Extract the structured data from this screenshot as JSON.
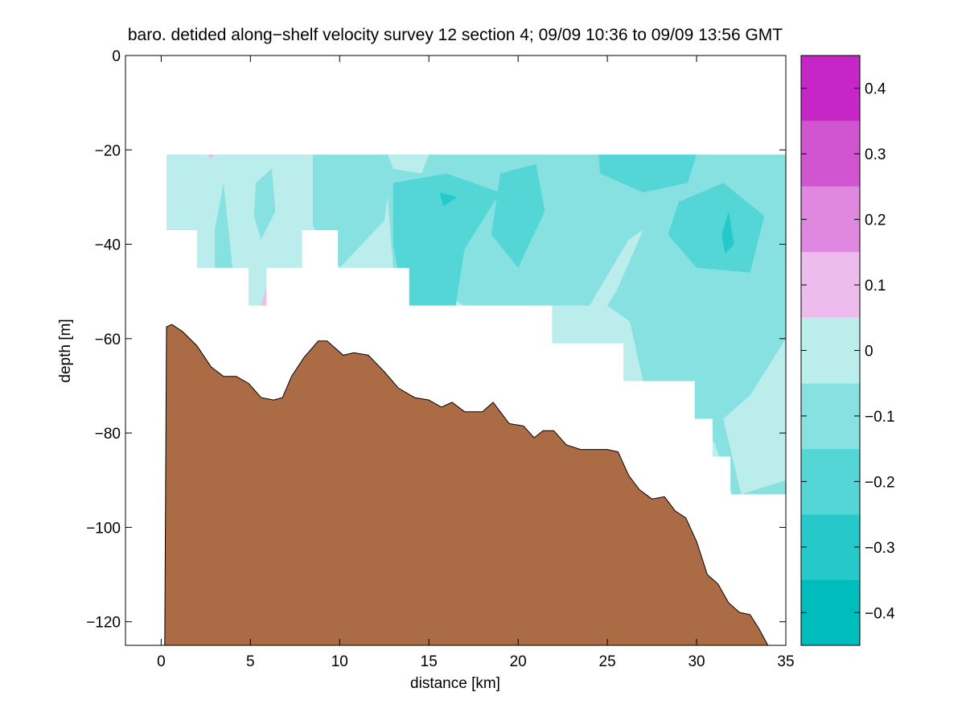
{
  "chart_data": {
    "type": "contour",
    "title": "baro. detided along−shelf velocity survey 12 section 4; 09/09 10:36 to 09/09 13:56 GMT",
    "xlabel": "distance [km]",
    "ylabel": "depth [m]",
    "xlim": [
      -2,
      35
    ],
    "ylim": [
      -125,
      0
    ],
    "x_ticks": [
      0,
      5,
      10,
      15,
      20,
      25,
      30,
      35
    ],
    "x_tick_labels": [
      "0",
      "5",
      "10",
      "15",
      "20",
      "25",
      "30",
      "35"
    ],
    "y_ticks": [
      0,
      -20,
      -40,
      -60,
      -80,
      -100,
      -120
    ],
    "y_tick_labels": [
      "0",
      "−20",
      "−40",
      "−60",
      "−80",
      "−100",
      "−120"
    ],
    "grid": false,
    "colorbar": {
      "limits": [
        -0.45,
        0.45
      ],
      "levels": [
        -0.45,
        -0.35,
        -0.25,
        -0.15,
        -0.05,
        0.05,
        0.15,
        0.25,
        0.35,
        0.45
      ],
      "colors": [
        "#00BDBD",
        "#26C9C9",
        "#55D6D6",
        "#88E1E1",
        "#BCEDED",
        "#ECBDEC",
        "#E088E0",
        "#D155D1",
        "#C626C6",
        "#BD00BD"
      ],
      "ticks": [
        -0.4,
        -0.3,
        -0.2,
        -0.1,
        0,
        0.1,
        0.2,
        0.3,
        0.4
      ],
      "tick_labels": [
        "−0.4",
        "−0.3",
        "−0.2",
        "−0.1",
        "0",
        "0.1",
        "0.2",
        "0.3",
        "0.4"
      ]
    },
    "data_region": {
      "top_depth": -21,
      "bottom_outline": [
        [
          0.3,
          -37
        ],
        [
          2.0,
          -37
        ],
        [
          2.0,
          -45
        ],
        [
          4.9,
          -45
        ],
        [
          4.9,
          -53
        ],
        [
          5.9,
          -53
        ],
        [
          5.9,
          -45
        ],
        [
          7.9,
          -45
        ],
        [
          7.9,
          -37
        ],
        [
          9.9,
          -37
        ],
        [
          9.9,
          -45
        ],
        [
          13.9,
          -45
        ],
        [
          13.9,
          -53
        ],
        [
          21.9,
          -53
        ],
        [
          21.9,
          -61
        ],
        [
          25.9,
          -61
        ],
        [
          25.9,
          -69
        ],
        [
          29.9,
          -69
        ],
        [
          29.9,
          -77
        ],
        [
          30.9,
          -77
        ],
        [
          30.9,
          -85
        ],
        [
          31.9,
          -85
        ],
        [
          31.9,
          -93
        ],
        [
          35,
          -93
        ]
      ]
    },
    "velocity_patches": [
      {
        "level": -0.15,
        "points": [
          [
            8.5,
            -21
          ],
          [
            13,
            -21
          ],
          [
            12.5,
            -35
          ],
          [
            10,
            -45
          ],
          [
            8.5,
            -36
          ]
        ]
      },
      {
        "level": -0.15,
        "points": [
          [
            12.5,
            -21
          ],
          [
            35,
            -21
          ],
          [
            35,
            -55
          ],
          [
            28,
            -61
          ],
          [
            25,
            -53
          ],
          [
            17,
            -53
          ],
          [
            13,
            -45
          ]
        ]
      },
      {
        "level": -0.15,
        "points": [
          [
            26,
            -52
          ],
          [
            35,
            -46
          ],
          [
            35,
            -93
          ],
          [
            32,
            -93
          ],
          [
            31,
            -82
          ],
          [
            27,
            -69
          ]
        ]
      },
      {
        "level": -0.15,
        "points": [
          [
            3.5,
            -27
          ],
          [
            4,
            -45
          ],
          [
            3,
            -45
          ],
          [
            3,
            -37
          ]
        ]
      },
      {
        "level": -0.15,
        "points": [
          [
            5.3,
            -27
          ],
          [
            6.2,
            -24
          ],
          [
            6.4,
            -33
          ],
          [
            5.6,
            -39
          ],
          [
            5.2,
            -34
          ]
        ]
      },
      {
        "level": -0.25,
        "points": [
          [
            13,
            -27
          ],
          [
            16,
            -25
          ],
          [
            19,
            -29
          ],
          [
            17,
            -41
          ],
          [
            16.5,
            -53
          ],
          [
            13.6,
            -53
          ],
          [
            13,
            -40
          ]
        ]
      },
      {
        "level": -0.25,
        "points": [
          [
            19,
            -25
          ],
          [
            21,
            -23
          ],
          [
            21.5,
            -33
          ],
          [
            20,
            -45
          ],
          [
            18.5,
            -38
          ]
        ]
      },
      {
        "level": -0.25,
        "points": [
          [
            29,
            -31
          ],
          [
            31.5,
            -27
          ],
          [
            33.8,
            -34
          ],
          [
            33,
            -46
          ],
          [
            30,
            -45
          ],
          [
            28.4,
            -38
          ]
        ]
      },
      {
        "level": -0.25,
        "points": [
          [
            24.5,
            -21
          ],
          [
            30,
            -21
          ],
          [
            29.5,
            -27
          ],
          [
            27,
            -29
          ],
          [
            24.6,
            -25
          ]
        ]
      },
      {
        "level": -0.35,
        "points": [
          [
            31.4,
            -38
          ],
          [
            31.8,
            -33
          ],
          [
            32.1,
            -40
          ],
          [
            31.6,
            -42
          ]
        ]
      },
      {
        "level": -0.35,
        "points": [
          [
            15.6,
            -29
          ],
          [
            16.6,
            -30
          ],
          [
            15.8,
            -32
          ]
        ]
      },
      {
        "level": -0.05,
        "points": [
          [
            12.7,
            -21
          ],
          [
            15,
            -21
          ],
          [
            14.6,
            -25
          ],
          [
            13,
            -24
          ]
        ]
      },
      {
        "level": -0.05,
        "points": [
          [
            24,
            -53
          ],
          [
            26.2,
            -39
          ],
          [
            27,
            -37
          ],
          [
            25.5,
            -50
          ],
          [
            24.3,
            -57
          ]
        ]
      },
      {
        "level": -0.05,
        "points": [
          [
            31.5,
            -77
          ],
          [
            33,
            -72
          ],
          [
            35,
            -60
          ],
          [
            35,
            -90
          ],
          [
            32.5,
            -93
          ]
        ]
      },
      {
        "level": 0.05,
        "points": [
          [
            5.6,
            -53
          ],
          [
            5.9,
            -49
          ],
          [
            5.9,
            -53
          ]
        ]
      },
      {
        "level": 0.05,
        "points": [
          [
            2.6,
            -21
          ],
          [
            3.0,
            -21
          ],
          [
            2.8,
            -22
          ]
        ]
      }
    ],
    "bathymetry": [
      [
        0.2,
        -125
      ],
      [
        0.3,
        -57.5
      ],
      [
        0.6,
        -57
      ],
      [
        1.2,
        -58.5
      ],
      [
        2.0,
        -61.5
      ],
      [
        2.8,
        -66
      ],
      [
        3.5,
        -68
      ],
      [
        4.2,
        -68
      ],
      [
        4.9,
        -69.5
      ],
      [
        5.6,
        -72.5
      ],
      [
        6.3,
        -73
      ],
      [
        6.8,
        -72.5
      ],
      [
        7.3,
        -68
      ],
      [
        8.0,
        -64
      ],
      [
        8.8,
        -60.5
      ],
      [
        9.3,
        -60.5
      ],
      [
        10.2,
        -63.5
      ],
      [
        10.8,
        -63
      ],
      [
        11.6,
        -63.5
      ],
      [
        12.5,
        -67
      ],
      [
        13.3,
        -70.5
      ],
      [
        14.2,
        -72.5
      ],
      [
        15.0,
        -73
      ],
      [
        15.7,
        -74.5
      ],
      [
        16.3,
        -73.5
      ],
      [
        17.0,
        -75.5
      ],
      [
        18.0,
        -75.5
      ],
      [
        18.6,
        -73.5
      ],
      [
        19.5,
        -78
      ],
      [
        20.3,
        -78.5
      ],
      [
        20.9,
        -81
      ],
      [
        21.4,
        -79.5
      ],
      [
        22.0,
        -79.5
      ],
      [
        22.7,
        -82.5
      ],
      [
        23.5,
        -83.5
      ],
      [
        24.3,
        -83.5
      ],
      [
        25.0,
        -83.5
      ],
      [
        25.6,
        -84
      ],
      [
        26.2,
        -89
      ],
      [
        26.8,
        -92
      ],
      [
        27.5,
        -94
      ],
      [
        28.2,
        -93.5
      ],
      [
        28.8,
        -96.5
      ],
      [
        29.4,
        -98
      ],
      [
        30.0,
        -103
      ],
      [
        30.6,
        -110
      ],
      [
        31.2,
        -112
      ],
      [
        31.8,
        -116
      ],
      [
        32.4,
        -118
      ],
      [
        33.0,
        -118.5
      ],
      [
        33.5,
        -121.5
      ],
      [
        34.0,
        -125
      ]
    ],
    "bathymetry_color": "#AB6C45"
  }
}
